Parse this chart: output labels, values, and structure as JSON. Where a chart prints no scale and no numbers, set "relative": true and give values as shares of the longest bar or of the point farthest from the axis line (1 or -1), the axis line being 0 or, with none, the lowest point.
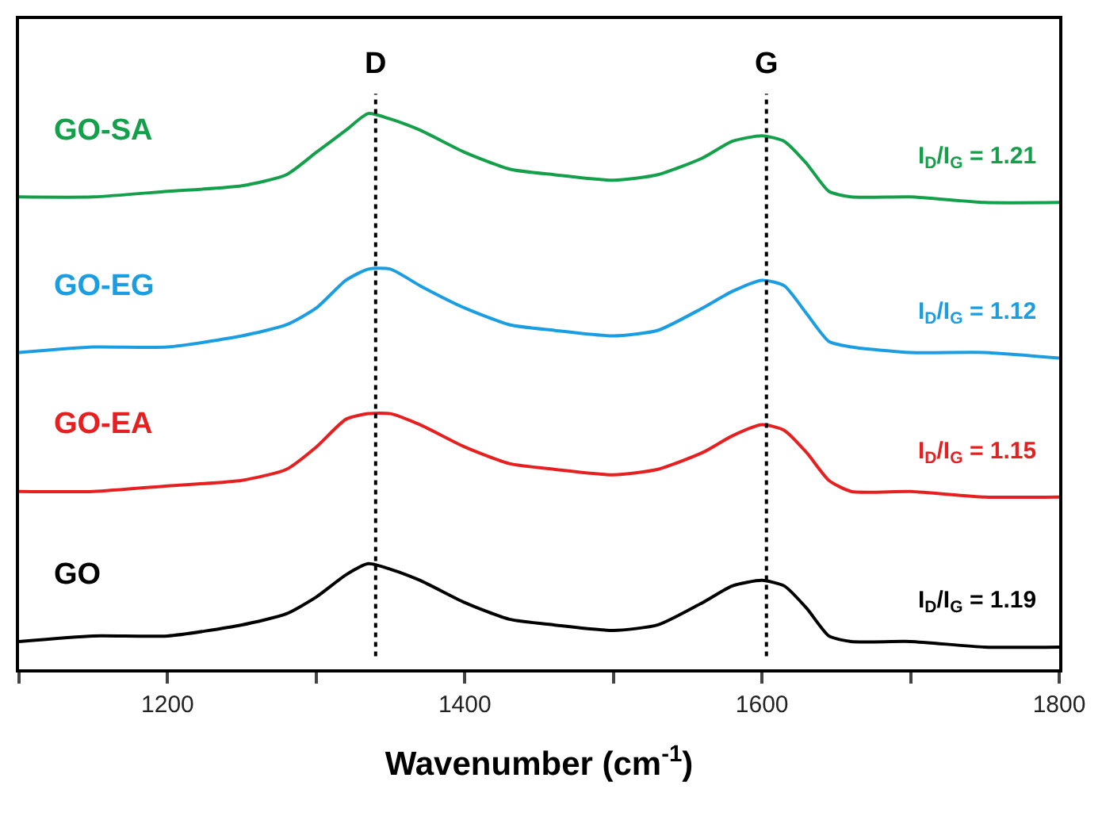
{
  "chart_data": {
    "type": "line",
    "relative": true,
    "xlabel": "Wavenumber (cm$^{-1}$)",
    "x": [
      1100,
      1150,
      1200,
      1250,
      1280,
      1300,
      1320,
      1335,
      1350,
      1370,
      1400,
      1430,
      1460,
      1500,
      1530,
      1560,
      1580,
      1600,
      1615,
      1630,
      1645,
      1660,
      1700,
      1750,
      1800
    ],
    "xlim": [
      1100,
      1800
    ],
    "xticks": [
      {
        "value": 1100,
        "label": null
      },
      1200,
      {
        "value": 1300,
        "label": null
      },
      1400,
      {
        "value": 1500,
        "label": null
      },
      1600,
      {
        "value": 1700,
        "label": null
      },
      1800
    ],
    "series": [
      {
        "name": "GO-SA",
        "color": "#14a04a",
        "values": [
          0.85,
          0.85,
          0.86,
          0.87,
          0.89,
          0.93,
          0.97,
          1.0,
          0.99,
          0.97,
          0.93,
          0.9,
          0.89,
          0.88,
          0.89,
          0.92,
          0.95,
          0.96,
          0.95,
          0.91,
          0.86,
          0.85,
          0.85,
          0.84,
          0.84
        ]
      },
      {
        "name": "GO-EG",
        "color": "#1b9de2",
        "values": [
          0.57,
          0.58,
          0.58,
          0.6,
          0.62,
          0.65,
          0.7,
          0.72,
          0.72,
          0.69,
          0.65,
          0.62,
          0.61,
          0.6,
          0.61,
          0.65,
          0.68,
          0.7,
          0.69,
          0.64,
          0.59,
          0.58,
          0.57,
          0.57,
          0.56
        ]
      },
      {
        "name": "GO-EA",
        "color": "#e62020",
        "values": [
          0.32,
          0.32,
          0.33,
          0.34,
          0.36,
          0.4,
          0.45,
          0.46,
          0.46,
          0.44,
          0.4,
          0.37,
          0.36,
          0.35,
          0.36,
          0.39,
          0.42,
          0.44,
          0.43,
          0.39,
          0.34,
          0.32,
          0.32,
          0.31,
          0.31
        ]
      },
      {
        "name": "GO",
        "color": "#000000",
        "values": [
          0.05,
          0.06,
          0.06,
          0.08,
          0.1,
          0.13,
          0.17,
          0.19,
          0.18,
          0.16,
          0.12,
          0.09,
          0.08,
          0.07,
          0.08,
          0.12,
          0.15,
          0.16,
          0.15,
          0.11,
          0.06,
          0.05,
          0.05,
          0.04,
          0.04
        ]
      }
    ],
    "annotations": [
      "I$_{D}$/I$_{G}$ = 1.21",
      "I$_{D}$/I$_{G}$ = 1.12",
      "I$_{D}$/I$_{G}$ = 1.15",
      "I$_{D}$/I$_{G}$ = 1.19"
    ],
    "ref_lines": [
      {
        "axis": "x",
        "value": 1340,
        "label": "D",
        "color": "#000000",
        "line_style": "dotted"
      },
      {
        "axis": "x",
        "value": 1603,
        "label": "G",
        "color": "#000000",
        "line_style": "dotted"
      }
    ],
    "legend": false,
    "marker": "none",
    "line_style": "solid"
  }
}
